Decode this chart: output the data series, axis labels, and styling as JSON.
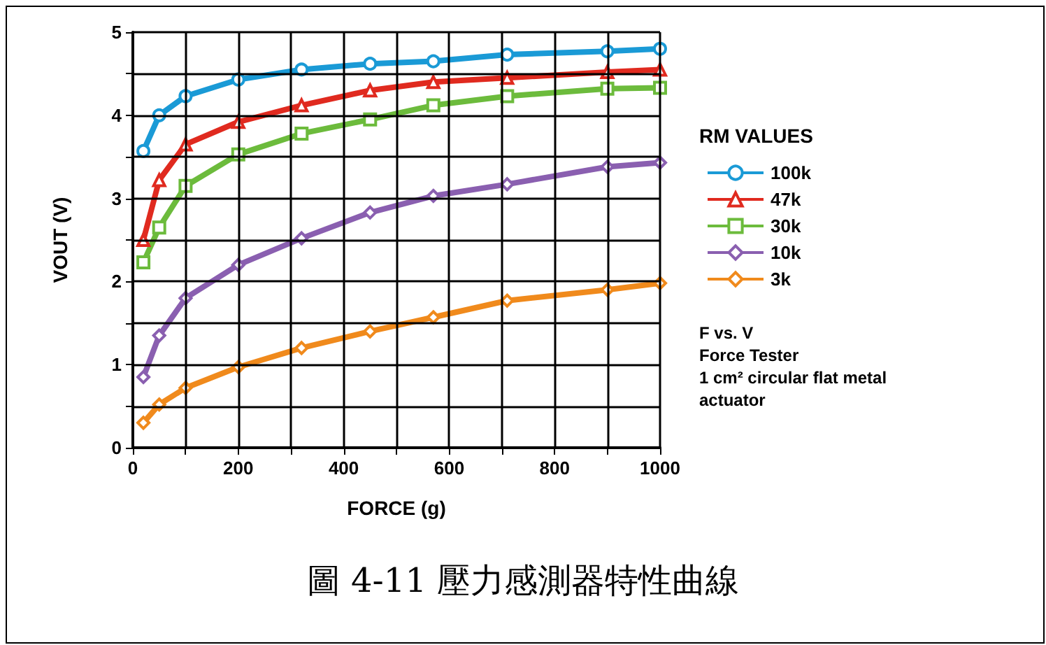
{
  "chart_data": {
    "type": "line",
    "xlabel": "FORCE (g)",
    "ylabel": "VOUT (V)",
    "legend_title": "RM VALUES",
    "x": [
      20,
      50,
      100,
      200,
      320,
      450,
      570,
      710,
      900,
      1000
    ],
    "series": [
      {
        "name": "100k",
        "color": "#1a9ad6",
        "marker": "circle",
        "values": [
          3.57,
          4.0,
          4.23,
          4.43,
          4.55,
          4.62,
          4.65,
          4.73,
          4.77,
          4.8
        ]
      },
      {
        "name": "47k",
        "color": "#e02a1f",
        "marker": "triangle",
        "values": [
          2.5,
          3.22,
          3.65,
          3.92,
          4.12,
          4.3,
          4.4,
          4.45,
          4.52,
          4.55
        ]
      },
      {
        "name": "30k",
        "color": "#6cbb3c",
        "marker": "square",
        "values": [
          2.23,
          2.65,
          3.15,
          3.53,
          3.78,
          3.95,
          4.12,
          4.23,
          4.32,
          4.33
        ]
      },
      {
        "name": "10k",
        "color": "#8a5fb0",
        "marker": "diamond",
        "values": [
          0.85,
          1.35,
          1.8,
          2.2,
          2.52,
          2.83,
          3.03,
          3.17,
          3.38,
          3.43
        ]
      },
      {
        "name": "3k",
        "color": "#f08a1c",
        "marker": "diamond",
        "values": [
          0.3,
          0.52,
          0.72,
          0.97,
          1.2,
          1.4,
          1.57,
          1.77,
          1.9,
          1.98
        ]
      }
    ],
    "xlim": [
      0,
      1000
    ],
    "xticks": [
      0,
      {
        "value": 100,
        "label": null
      },
      200,
      {
        "value": 300,
        "label": null
      },
      400,
      {
        "value": 500,
        "label": null
      },
      600,
      {
        "value": 700,
        "label": null
      },
      800,
      {
        "value": 900,
        "label": null
      },
      1000
    ],
    "ylim": [
      0,
      5
    ],
    "yticks": [
      0,
      {
        "value": 0.5,
        "label": null
      },
      1,
      {
        "value": 1.5,
        "label": null
      },
      2,
      {
        "value": 2.5,
        "label": null
      },
      3,
      {
        "value": 3.5,
        "label": null
      },
      4,
      {
        "value": 4.5,
        "label": null
      },
      5
    ],
    "grid": true,
    "legend": "right",
    "line_style": "solid",
    "annotations": [
      "F vs. V\nForce Tester\n1 cm² circular flat metal\nactuator",
      "圖 4-11 壓力感測器特性曲線"
    ]
  }
}
